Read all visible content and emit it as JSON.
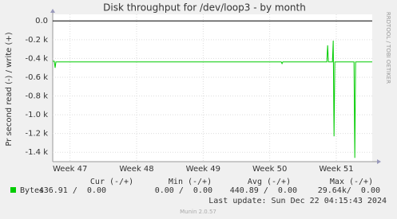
{
  "chart_data": {
    "type": "line",
    "title": "Disk throughput for /dev/loop3 - by month",
    "y_label": "Pr second read (-) / write (+)",
    "side_text": "RRDTOOL / TOBI OETIKER",
    "x": [
      46.74,
      46.764,
      46.776,
      46.788,
      50.173,
      50.185,
      50.197,
      50.858,
      50.87,
      50.882,
      50.942,
      50.954,
      50.966,
      50.978,
      51.266,
      51.278,
      51.29,
      51.54
    ],
    "series": [
      {
        "name": "Bytes",
        "color": "#00cc00",
        "values": [
          -430,
          -430,
          -500,
          -437,
          -437,
          -455,
          -437,
          -437,
          -260,
          -437,
          -437,
          -210,
          -1230,
          -437,
          -437,
          -1460,
          -437,
          -437
        ]
      }
    ],
    "xlim": [
      46.74,
      51.54
    ],
    "xticks": [
      {
        "value": 47,
        "label": "Week 47"
      },
      {
        "value": 48,
        "label": "Week 48"
      },
      {
        "value": 49,
        "label": "Week 49"
      },
      {
        "value": 50,
        "label": "Week 50"
      },
      {
        "value": 51,
        "label": "Week 51"
      }
    ],
    "ylim": [
      -1500,
      70
    ],
    "yticks": [
      {
        "value": 0,
        "label": "0.0"
      },
      {
        "value": -200,
        "label": "-0.2 k"
      },
      {
        "value": -400,
        "label": "-0.4 k"
      },
      {
        "value": -600,
        "label": "-0.6 k"
      },
      {
        "value": -800,
        "label": "-0.8 k"
      },
      {
        "value": -1000,
        "label": "-1.0 k"
      },
      {
        "value": -1200,
        "label": "-1.2 k"
      },
      {
        "value": -1400,
        "label": "-1.4 k"
      }
    ],
    "grid": true,
    "legend_table": {
      "headers": [
        "Cur (-/+)",
        "Min (-/+)",
        "Avg (-/+)",
        "Max (-/+)"
      ],
      "cells": [
        "436.91 /  0.00",
        "0.00 /  0.00",
        "440.89 /  0.00",
        "29.64k/  0.00"
      ]
    },
    "last_update": "Last update: Sun Dec 22 04:15:43 2024",
    "footer": "Munin 2.0.57"
  }
}
